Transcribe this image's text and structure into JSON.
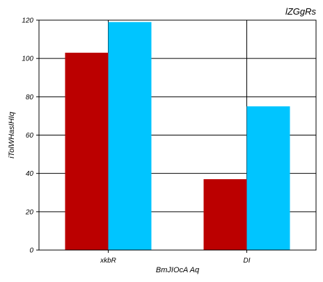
{
  "chart_data": {
    "type": "bar",
    "title": "lZGgRs",
    "xlabel": "BmJIOcA  Aq",
    "ylabel": "iTolWHasIHIq",
    "categories": [
      "xkbR",
      "DI"
    ],
    "series": [
      {
        "values": [
          103,
          37
        ],
        "color": "#bb0000"
      },
      {
        "values": [
          119,
          75
        ],
        "color": "#00c5ff"
      }
    ],
    "ylim": [
      0,
      120
    ],
    "yticks": [
      0,
      20,
      40,
      60,
      80,
      100,
      120
    ],
    "grid": true
  }
}
